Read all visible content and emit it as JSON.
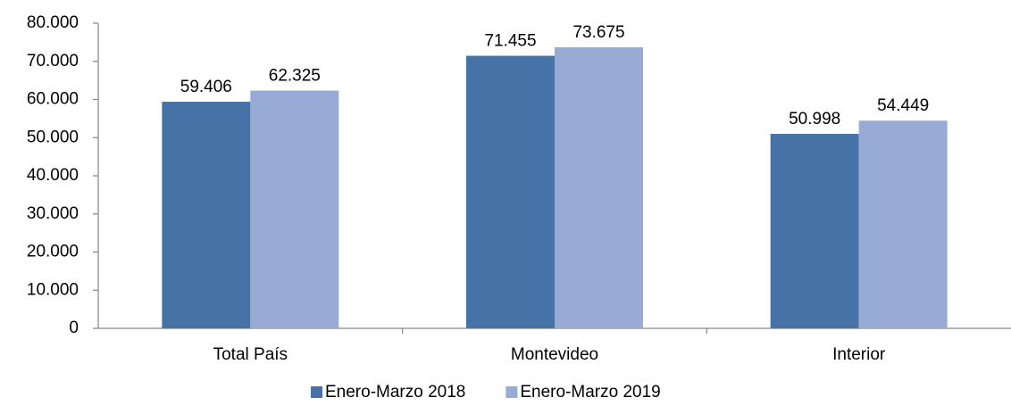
{
  "chart_data": {
    "type": "bar",
    "categories": [
      "Total País",
      "Montevideo",
      "Interior"
    ],
    "series": [
      {
        "name": "Enero-Marzo 2018",
        "color": "#4672a8",
        "values": [
          59406,
          71455,
          50998
        ],
        "value_labels": [
          "59.406",
          "71.455",
          "50.998"
        ]
      },
      {
        "name": "Enero-Marzo 2019",
        "color": "#97abd4",
        "values": [
          62325,
          73675,
          54449
        ],
        "value_labels": [
          "62.325",
          "73.675",
          "54.449"
        ]
      }
    ],
    "ylim": [
      0,
      80000
    ],
    "yticks": [
      0,
      {
        "value": 10000,
        "label": "10.000"
      },
      {
        "value": 20000,
        "label": "20.000"
      },
      {
        "value": 30000,
        "label": "30.000"
      },
      {
        "value": 40000,
        "label": "40.000"
      },
      {
        "value": 50000,
        "label": "50.000"
      },
      {
        "value": 60000,
        "label": "60.000"
      },
      {
        "value": 70000,
        "label": "70.000"
      },
      {
        "value": 80000,
        "label": "80.000"
      }
    ],
    "grid": false,
    "legend": "bottom"
  }
}
